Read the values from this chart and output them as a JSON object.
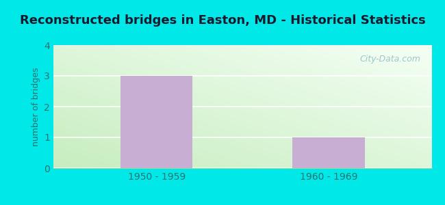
{
  "title": "Reconstructed bridges in Easton, MD - Historical Statistics",
  "categories": [
    "1950 - 1959",
    "1960 - 1969"
  ],
  "values": [
    3,
    1
  ],
  "bar_color": "#c9aed4",
  "ylabel": "number of bridges",
  "ylim": [
    0,
    4
  ],
  "yticks": [
    0,
    1,
    2,
    3,
    4
  ],
  "background_outer": "#00e8e8",
  "grid_color": "#e0ede0",
  "title_color": "#1a1a2e",
  "ylabel_color": "#2a7070",
  "tick_label_color": "#2a7070",
  "watermark": "City-Data.com",
  "title_fontsize": 13,
  "ylabel_fontsize": 9,
  "tick_fontsize": 10,
  "grad_topleft": "#d4ead4",
  "grad_topright": "#e8f8f8",
  "grad_bottomleft": "#c8e8c0",
  "grad_bottomright": "#e0f8f0"
}
